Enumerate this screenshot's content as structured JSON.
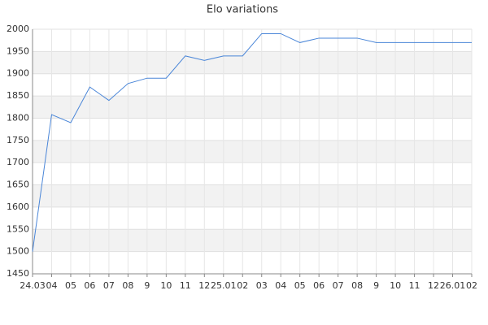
{
  "chart_data": {
    "type": "line",
    "title": "Elo variations",
    "categories": [
      "24.03",
      "04",
      "05",
      "06",
      "07",
      "08",
      "9",
      "10",
      "11",
      "12",
      "25.01",
      "02",
      "03",
      "04",
      "05",
      "06",
      "07",
      "08",
      "9",
      "10",
      "11",
      "12",
      "26.01",
      "02"
    ],
    "series": [
      {
        "name": "Elo",
        "color": "#4a86d8",
        "values": [
          1500,
          1808,
          1790,
          1870,
          1840,
          1878,
          1890,
          1890,
          1940,
          1930,
          1940,
          1940,
          1990,
          1990,
          1970,
          1980,
          1980,
          1980,
          1970,
          1970,
          1970,
          1970,
          1970,
          1970
        ]
      }
    ],
    "ylim": [
      1450,
      2000
    ],
    "yticks": [
      1450,
      1500,
      1550,
      1600,
      1650,
      1700,
      1750,
      1800,
      1850,
      1900,
      1950,
      2000
    ],
    "grid": true
  }
}
